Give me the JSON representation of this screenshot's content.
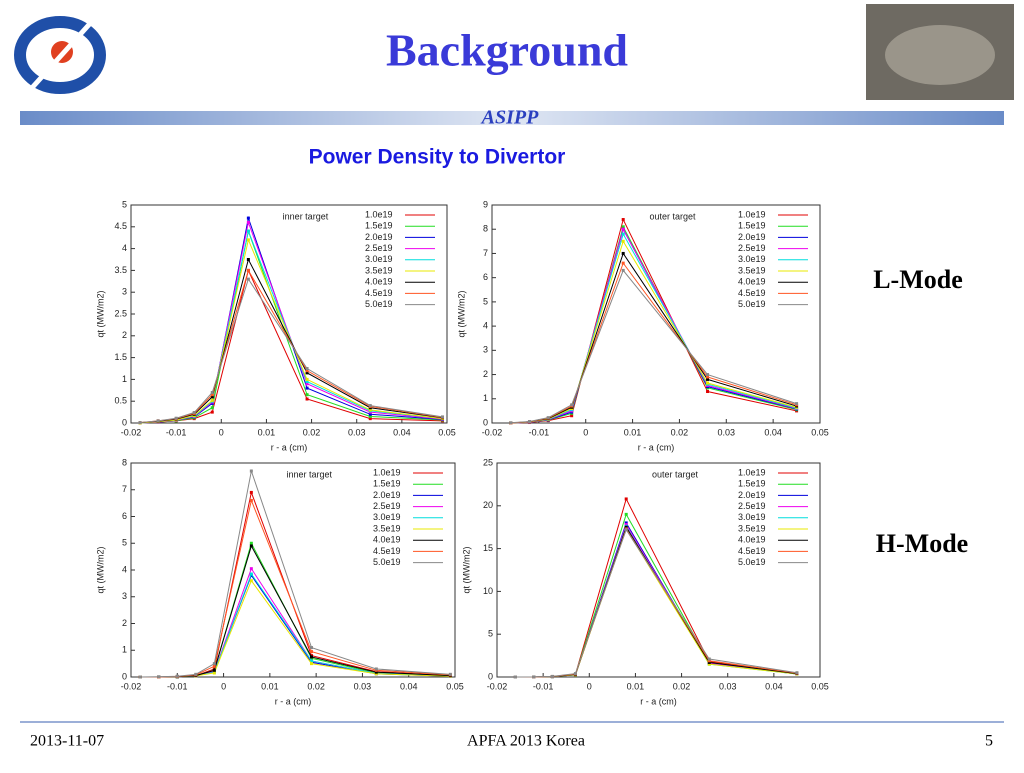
{
  "header": {
    "title": "Background",
    "subtitle": "ASIPP",
    "heading": "Power Density to Divertor"
  },
  "side_labels": [
    "L-Mode",
    "H-Mode"
  ],
  "footer": {
    "date": "2013-11-07",
    "event": "APFA 2013 Korea",
    "page": "5"
  },
  "chart_data": [
    {
      "type": "line",
      "annotation": "inner target",
      "x_label": "r - a (cm)",
      "y_label": "qt (MW/m2)",
      "xlim": [
        -0.02,
        0.05
      ],
      "xticks": [
        -0.02,
        -0.01,
        0,
        0.01,
        0.02,
        0.03,
        0.04,
        0.05
      ],
      "ylim": [
        0,
        5
      ],
      "yticks": [
        0,
        0.5,
        1,
        1.5,
        2,
        2.5,
        3,
        3.5,
        4,
        4.5,
        5
      ],
      "x": [
        -0.018,
        -0.014,
        -0.01,
        -0.006,
        -0.002,
        0.006,
        0.019,
        0.033,
        0.049
      ],
      "series": [
        {
          "name": "1.0e19",
          "color": "#e00000",
          "values": [
            0,
            0.02,
            0.05,
            0.1,
            0.25,
            3.5,
            0.55,
            0.1,
            0.05
          ]
        },
        {
          "name": "1.5e19",
          "color": "#22dd22",
          "values": [
            0,
            0.02,
            0.05,
            0.12,
            0.35,
            4.4,
            0.65,
            0.15,
            0.07
          ]
        },
        {
          "name": "2.0e19",
          "color": "#0000dd",
          "values": [
            0,
            0.02,
            0.06,
            0.14,
            0.45,
            4.7,
            0.8,
            0.2,
            0.08
          ]
        },
        {
          "name": "2.5e19",
          "color": "#ee00ee",
          "values": [
            0,
            0.02,
            0.06,
            0.15,
            0.48,
            4.6,
            0.9,
            0.25,
            0.09
          ]
        },
        {
          "name": "3.0e19",
          "color": "#00dddd",
          "values": [
            0,
            0.03,
            0.07,
            0.16,
            0.5,
            4.4,
            0.95,
            0.28,
            0.1
          ]
        },
        {
          "name": "3.5e19",
          "color": "#e8e800",
          "values": [
            0,
            0.03,
            0.07,
            0.17,
            0.52,
            4.2,
            1.0,
            0.3,
            0.1
          ]
        },
        {
          "name": "4.0e19",
          "color": "#000000",
          "values": [
            0.01,
            0.04,
            0.09,
            0.2,
            0.6,
            3.75,
            1.15,
            0.35,
            0.12
          ]
        },
        {
          "name": "4.5e19",
          "color": "#ff5522",
          "values": [
            0.01,
            0.05,
            0.1,
            0.22,
            0.65,
            3.5,
            1.2,
            0.38,
            0.13
          ]
        },
        {
          "name": "5.0e19",
          "color": "#888888",
          "values": [
            0.01,
            0.05,
            0.11,
            0.24,
            0.7,
            3.3,
            1.25,
            0.4,
            0.14
          ]
        }
      ]
    },
    {
      "type": "line",
      "annotation": "outer target",
      "x_label": "r - a (cm)",
      "y_label": "qt (MW/m2)",
      "xlim": [
        -0.02,
        0.05
      ],
      "xticks": [
        -0.02,
        -0.01,
        0,
        0.01,
        0.02,
        0.03,
        0.04,
        0.05
      ],
      "ylim": [
        0,
        9
      ],
      "yticks": [
        0,
        1,
        2,
        3,
        4,
        5,
        6,
        7,
        8,
        9
      ],
      "x": [
        -0.016,
        -0.012,
        -0.008,
        -0.003,
        0.008,
        0.026,
        0.045
      ],
      "series": [
        {
          "name": "1.0e19",
          "color": "#e00000",
          "values": [
            0,
            0.02,
            0.1,
            0.3,
            8.4,
            1.3,
            0.5
          ]
        },
        {
          "name": "1.5e19",
          "color": "#22dd22",
          "values": [
            0,
            0.03,
            0.12,
            0.4,
            8.1,
            1.45,
            0.55
          ]
        },
        {
          "name": "2.0e19",
          "color": "#0000dd",
          "values": [
            0,
            0.03,
            0.13,
            0.45,
            8.0,
            1.5,
            0.58
          ]
        },
        {
          "name": "2.5e19",
          "color": "#ee00ee",
          "values": [
            0,
            0.03,
            0.14,
            0.5,
            8.0,
            1.55,
            0.6
          ]
        },
        {
          "name": "3.0e19",
          "color": "#00dddd",
          "values": [
            0,
            0.04,
            0.15,
            0.55,
            7.8,
            1.6,
            0.62
          ]
        },
        {
          "name": "3.5e19",
          "color": "#e8e800",
          "values": [
            0,
            0.04,
            0.16,
            0.6,
            7.5,
            1.65,
            0.65
          ]
        },
        {
          "name": "4.0e19",
          "color": "#000000",
          "values": [
            0,
            0.05,
            0.18,
            0.65,
            7.0,
            1.8,
            0.7
          ]
        },
        {
          "name": "4.5e19",
          "color": "#ff5522",
          "values": [
            0,
            0.05,
            0.2,
            0.7,
            6.6,
            1.9,
            0.75
          ]
        },
        {
          "name": "5.0e19",
          "color": "#888888",
          "values": [
            0.01,
            0.06,
            0.22,
            0.75,
            6.3,
            2.0,
            0.8
          ]
        }
      ]
    },
    {
      "type": "line",
      "annotation": "inner target",
      "x_label": "r - a (cm)",
      "y_label": "qt (MW/m2)",
      "xlim": [
        -0.02,
        0.05
      ],
      "xticks": [
        -0.02,
        -0.01,
        0,
        0.01,
        0.02,
        0.03,
        0.04,
        0.05
      ],
      "ylim": [
        0,
        8
      ],
      "yticks": [
        0,
        1,
        2,
        3,
        4,
        5,
        6,
        7,
        8
      ],
      "x": [
        -0.018,
        -0.014,
        -0.01,
        -0.006,
        -0.002,
        0.006,
        0.019,
        0.033,
        0.049
      ],
      "series": [
        {
          "name": "1.0e19",
          "color": "#e00000",
          "values": [
            0,
            0,
            0.01,
            0.05,
            0.3,
            6.9,
            0.8,
            0.2,
            0.05
          ]
        },
        {
          "name": "1.5e19",
          "color": "#22dd22",
          "values": [
            0,
            0,
            0.01,
            0.05,
            0.25,
            5.0,
            0.7,
            0.15,
            0.04
          ]
        },
        {
          "name": "2.0e19",
          "color": "#0000dd",
          "values": [
            0,
            0,
            0.01,
            0.04,
            0.2,
            3.8,
            0.55,
            0.12,
            0.03
          ]
        },
        {
          "name": "2.5e19",
          "color": "#ee00ee",
          "values": [
            0,
            0,
            0.01,
            0.04,
            0.2,
            4.05,
            0.6,
            0.13,
            0.04
          ]
        },
        {
          "name": "3.0e19",
          "color": "#00dddd",
          "values": [
            0,
            0,
            0.01,
            0.04,
            0.18,
            3.85,
            0.6,
            0.13,
            0.04
          ]
        },
        {
          "name": "3.5e19",
          "color": "#e8e800",
          "values": [
            0,
            0,
            0.01,
            0.04,
            0.15,
            3.6,
            0.5,
            0.12,
            0.03
          ]
        },
        {
          "name": "4.0e19",
          "color": "#000000",
          "values": [
            0,
            0,
            0.01,
            0.05,
            0.25,
            4.9,
            0.75,
            0.18,
            0.05
          ]
        },
        {
          "name": "4.5e19",
          "color": "#ff5522",
          "values": [
            0,
            0,
            0.02,
            0.08,
            0.4,
            6.6,
            0.95,
            0.25,
            0.08
          ]
        },
        {
          "name": "5.0e19",
          "color": "#888888",
          "values": [
            0,
            0.01,
            0.03,
            0.1,
            0.5,
            7.7,
            1.1,
            0.3,
            0.1
          ]
        }
      ]
    },
    {
      "type": "line",
      "annotation": "outer target",
      "x_label": "r - a (cm)",
      "y_label": "qt (MW/m2)",
      "xlim": [
        -0.02,
        0.05
      ],
      "xticks": [
        -0.02,
        -0.01,
        0,
        0.01,
        0.02,
        0.03,
        0.04,
        0.05
      ],
      "ylim": [
        0,
        25
      ],
      "yticks": [
        0,
        5,
        10,
        15,
        20,
        25
      ],
      "x": [
        -0.016,
        -0.012,
        -0.008,
        -0.003,
        0.008,
        0.026,
        0.045
      ],
      "series": [
        {
          "name": "1.0e19",
          "color": "#e00000",
          "values": [
            0,
            0,
            0.05,
            0.3,
            20.8,
            1.8,
            0.4
          ]
        },
        {
          "name": "1.5e19",
          "color": "#22dd22",
          "values": [
            0,
            0,
            0.05,
            0.3,
            19.0,
            1.7,
            0.4
          ]
        },
        {
          "name": "2.0e19",
          "color": "#0000dd",
          "values": [
            0,
            0,
            0.05,
            0.25,
            18.0,
            1.6,
            0.35
          ]
        },
        {
          "name": "2.5e19",
          "color": "#ee00ee",
          "values": [
            0,
            0,
            0.05,
            0.25,
            17.8,
            1.6,
            0.35
          ]
        },
        {
          "name": "3.0e19",
          "color": "#00dddd",
          "values": [
            0,
            0,
            0.05,
            0.25,
            17.6,
            1.5,
            0.35
          ]
        },
        {
          "name": "3.5e19",
          "color": "#e8e800",
          "values": [
            0,
            0,
            0.05,
            0.25,
            17.3,
            1.5,
            0.35
          ]
        },
        {
          "name": "4.0e19",
          "color": "#000000",
          "values": [
            0,
            0,
            0.05,
            0.3,
            17.5,
            1.7,
            0.4
          ]
        },
        {
          "name": "4.5e19",
          "color": "#ff5522",
          "values": [
            0,
            0,
            0.06,
            0.35,
            17.3,
            1.9,
            0.45
          ]
        },
        {
          "name": "5.0e19",
          "color": "#888888",
          "values": [
            0,
            0.01,
            0.07,
            0.4,
            17.2,
            2.1,
            0.5
          ]
        }
      ]
    }
  ]
}
